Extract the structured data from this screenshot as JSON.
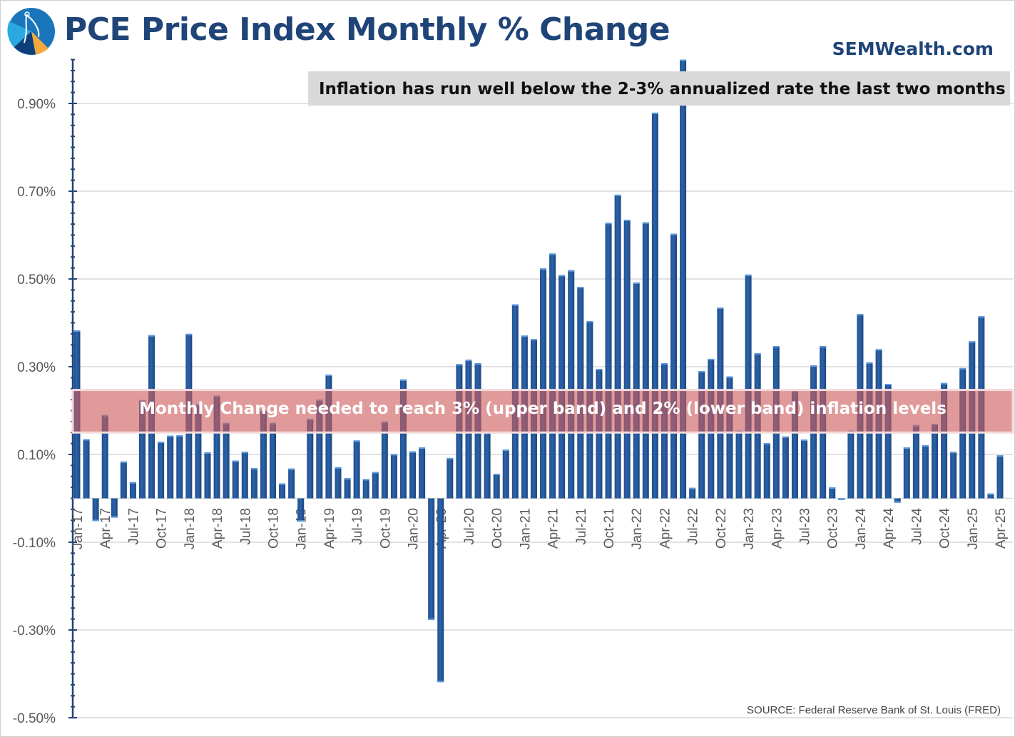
{
  "header": {
    "title": "PCE Price Index Monthly % Change",
    "brand": "SEMWealth.com"
  },
  "annotation": "Inflation has run well below the 2-3% annualized rate the last two months",
  "band": {
    "label": "Monthly Change needed to reach 3% (upper band) and 2% (lower band) inflation levels",
    "upper": 0.247,
    "lower": 0.15,
    "color": "#cd5c5c"
  },
  "source": "SOURCE: Federal Reserve Bank of St. Louis (FRED)",
  "colors": {
    "bar": "#2e62a8",
    "title": "#1f4478"
  },
  "chart_data": {
    "type": "bar",
    "title": "PCE Price Index Monthly % Change",
    "xlabel": "",
    "ylabel": "",
    "ylim": [
      -0.5,
      1.0
    ],
    "grid": true,
    "y_ticks": [
      -0.5,
      -0.3,
      -0.1,
      0.1,
      0.3,
      0.5,
      0.7,
      0.9
    ],
    "y_tick_labels": [
      "-0.50%",
      "-0.30%",
      "-0.10%",
      "0.10%",
      "0.30%",
      "0.50%",
      "0.70%",
      "0.90%"
    ],
    "x_tick_labels": [
      "Jan-17",
      "Apr-17",
      "Jul-17",
      "Oct-17",
      "Jan-18",
      "Apr-18",
      "Jul-18",
      "Oct-18",
      "Jan-19",
      "Apr-19",
      "Jul-19",
      "Oct-19",
      "Jan-20",
      "Apr-20",
      "Jul-20",
      "Oct-20",
      "Jan-21",
      "Apr-21",
      "Jul-21",
      "Oct-21",
      "Jan-22",
      "Apr-22",
      "Jul-22",
      "Oct-22",
      "Jan-23",
      "Apr-23",
      "Jul-23",
      "Oct-23",
      "Jan-24",
      "Apr-24",
      "Jul-24",
      "Oct-24",
      "Jan-25",
      "Apr-25"
    ],
    "start_month": "Jan-17",
    "values": [
      0.383,
      0.135,
      -0.052,
      0.19,
      -0.044,
      0.084,
      0.037,
      0.224,
      0.372,
      0.129,
      0.143,
      0.144,
      0.375,
      0.214,
      0.105,
      0.234,
      0.172,
      0.086,
      0.106,
      0.069,
      0.2,
      0.172,
      0.034,
      0.068,
      -0.053,
      0.181,
      0.225,
      0.282,
      0.071,
      0.046,
      0.132,
      0.044,
      0.06,
      0.175,
      0.101,
      0.271,
      0.107,
      0.116,
      -0.277,
      -0.419,
      0.092,
      0.306,
      0.316,
      0.308,
      0.15,
      0.056,
      0.111,
      0.442,
      0.371,
      0.363,
      0.524,
      0.558,
      0.509,
      0.52,
      0.482,
      0.404,
      0.295,
      0.628,
      0.692,
      0.635,
      0.492,
      0.629,
      0.879,
      0.308,
      0.603,
      1.0,
      0.024,
      0.29,
      0.318,
      0.435,
      0.278,
      0.154,
      0.51,
      0.331,
      0.126,
      0.347,
      0.141,
      0.245,
      0.134,
      0.303,
      0.347,
      0.025,
      -0.004,
      0.154,
      0.42,
      0.31,
      0.34,
      0.261,
      -0.01,
      0.116,
      0.167,
      0.121,
      0.17,
      0.263,
      0.106,
      0.297,
      0.358,
      0.415,
      0.011,
      0.098
    ]
  }
}
